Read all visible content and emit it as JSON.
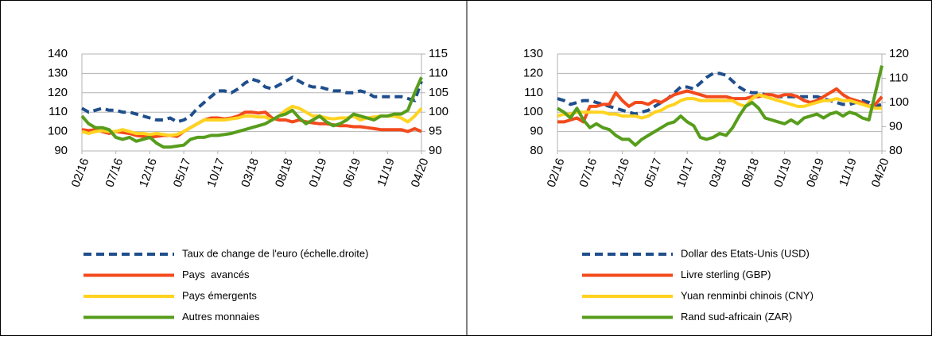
{
  "chart_data": [
    {
      "type": "line",
      "categories": [
        "02/16",
        null,
        null,
        null,
        null,
        "07/16",
        null,
        null,
        null,
        null,
        "12/16",
        null,
        null,
        null,
        null,
        "05/17",
        null,
        null,
        null,
        null,
        "10/17",
        null,
        null,
        null,
        null,
        "03/18",
        null,
        null,
        null,
        null,
        "08/18",
        null,
        null,
        null,
        null,
        "01/19",
        null,
        null,
        null,
        null,
        "06/19",
        null,
        null,
        null,
        null,
        "11/19",
        null,
        null,
        null,
        null,
        "04/20"
      ],
      "ylim": [
        90,
        140
      ],
      "yticks": [
        90,
        100,
        110,
        120,
        130,
        140
      ],
      "y2lim": [
        90,
        115
      ],
      "y2ticks": [
        90,
        95,
        100,
        105,
        110,
        115
      ],
      "grid": true,
      "series": [
        {
          "name": "Taux de change de l'euro (échelle.droite)",
          "color": "#1f4e8c",
          "style": "dashed",
          "axis": "y2",
          "values": [
            101,
            100,
            100.5,
            101,
            100.5,
            100.5,
            100,
            100,
            99.5,
            99,
            98.5,
            98,
            98,
            98.5,
            97.5,
            98,
            99,
            101,
            102.5,
            104,
            105.5,
            105.5,
            105,
            106,
            107.5,
            108.5,
            108,
            106.5,
            106,
            107,
            108,
            109,
            108,
            107,
            106.5,
            106.5,
            106,
            105.5,
            105.5,
            105,
            105,
            105.5,
            105,
            104,
            104,
            104,
            104,
            104,
            103.5,
            103,
            108
          ]
        },
        {
          "name": "Pays  avancés",
          "color": "#f24a1c",
          "style": "solid",
          "values": [
            101,
            100.5,
            101,
            100,
            99,
            100,
            99.5,
            99,
            98,
            97.5,
            97,
            97.5,
            98,
            98,
            97.5,
            100,
            102,
            104,
            106,
            107,
            107,
            106.5,
            107,
            108,
            110,
            110,
            109.5,
            110,
            107,
            106,
            106,
            105,
            106,
            105,
            104.5,
            104,
            104,
            103.5,
            103,
            103,
            102.5,
            102.5,
            102,
            101.5,
            101,
            101,
            101,
            101,
            100,
            101.5,
            100
          ]
        },
        {
          "name": "Pays émergents",
          "color": "#ffd320",
          "style": "solid",
          "values": [
            100,
            99,
            100,
            100.5,
            100,
            100,
            101,
            100,
            99,
            99,
            98.5,
            99,
            98.5,
            98,
            98.5,
            100,
            102,
            104,
            106,
            106,
            106,
            106,
            106.5,
            107,
            108,
            108,
            107.5,
            107.5,
            106,
            108,
            111,
            113,
            112,
            110,
            108,
            108,
            107,
            106.5,
            107,
            107,
            108,
            106,
            107,
            107.5,
            108,
            108,
            108,
            107,
            105,
            108,
            112
          ]
        },
        {
          "name": "Autres monnaies",
          "color": "#579d1c",
          "style": "solid",
          "values": [
            108,
            104,
            102,
            102,
            101,
            97,
            96,
            97,
            95,
            96,
            97,
            94,
            92,
            92,
            92.5,
            93,
            96,
            97,
            97,
            98,
            98,
            98.5,
            99,
            100,
            101,
            102,
            103,
            104,
            106,
            108,
            109,
            111,
            107,
            104,
            106,
            108,
            105,
            103,
            104,
            106,
            109,
            108,
            107,
            106,
            108,
            108,
            109,
            109,
            111,
            120,
            128
          ]
        }
      ]
    },
    {
      "type": "line",
      "categories": [
        "02/16",
        null,
        null,
        null,
        null,
        "07/16",
        null,
        null,
        null,
        null,
        "12/16",
        null,
        null,
        null,
        null,
        "05/17",
        null,
        null,
        null,
        null,
        "10/17",
        null,
        null,
        null,
        null,
        "03/18",
        null,
        null,
        null,
        null,
        "08/18",
        null,
        null,
        null,
        null,
        "01/19",
        null,
        null,
        null,
        null,
        "06/19",
        null,
        null,
        null,
        null,
        "11/19",
        null,
        null,
        null,
        null,
        "04/20"
      ],
      "ylim": [
        80,
        130
      ],
      "yticks": [
        80,
        90,
        100,
        110,
        120,
        130
      ],
      "y2lim": [
        80,
        120
      ],
      "y2ticks": [
        80,
        90,
        100,
        110,
        120
      ],
      "grid": true,
      "series": [
        {
          "name": "Dollar des Etats-Unis (USD)",
          "color": "#1f4e8c",
          "style": "dashed",
          "values": [
            107,
            106,
            104,
            105,
            106,
            106,
            105,
            104,
            103,
            102,
            101,
            100,
            99,
            100,
            101,
            103,
            105,
            107,
            110,
            113,
            113,
            112,
            115,
            118,
            120,
            120,
            119,
            116,
            113,
            111,
            110,
            110,
            109,
            109,
            108,
            108,
            108,
            108,
            108,
            108,
            108,
            107,
            106,
            105,
            104,
            104,
            105,
            106,
            105,
            103,
            104
          ]
        },
        {
          "name": "Livre sterling (GBP)",
          "color": "#f24a1c",
          "style": "solid",
          "values": [
            95,
            95,
            96,
            97,
            95,
            103,
            103,
            104,
            104,
            110,
            106,
            103,
            105,
            105,
            104,
            106,
            105,
            107,
            109,
            110,
            111,
            110,
            109,
            108,
            108,
            108,
            108,
            107,
            107,
            107,
            108,
            108,
            109,
            109,
            108,
            109,
            109,
            108,
            106,
            105,
            106,
            108,
            110,
            112,
            109,
            107,
            106,
            105,
            103,
            104,
            108
          ]
        },
        {
          "name": "Yuan renminbi chinois (CNY)",
          "color": "#ffd320",
          "style": "solid",
          "values": [
            98,
            99,
            99,
            100,
            100,
            100,
            100,
            100,
            99,
            99,
            98,
            98,
            98,
            97,
            98,
            100,
            101,
            103,
            104,
            106,
            107,
            107,
            106,
            106,
            106,
            106,
            106,
            106,
            104,
            103,
            107,
            109,
            108,
            107,
            106,
            105,
            104,
            103,
            103,
            104,
            105,
            106,
            106,
            107,
            106,
            106,
            105,
            104,
            103,
            102,
            102
          ]
        },
        {
          "name": "Rand sud-africain (ZAR)",
          "color": "#579d1c",
          "style": "solid",
          "values": [
            102,
            100,
            97,
            102,
            96,
            92,
            94,
            92,
            91,
            88,
            86,
            86,
            83,
            86,
            88,
            90,
            92,
            94,
            95,
            98,
            95,
            93,
            87,
            86,
            87,
            89,
            88,
            92,
            98,
            103,
            105,
            102,
            97,
            96,
            95,
            94,
            96,
            94,
            97,
            98,
            99,
            97,
            99,
            100,
            98,
            100,
            99,
            97,
            96,
            110,
            124
          ]
        }
      ]
    }
  ]
}
